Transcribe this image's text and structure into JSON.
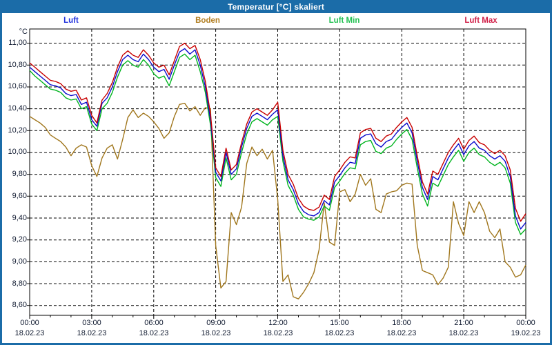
{
  "window": {
    "title": "Temperatur [°C] skaliert"
  },
  "chart_data": {
    "type": "line",
    "title": "Temperatur [°C] skaliert",
    "y_unit": "°C",
    "grid": "dashed-black",
    "legend_position": "top-row",
    "background": "#ffffff",
    "frame_color": "#1b6ca8",
    "plot_border_color": "#000000",
    "axis_text_color": "#101a30",
    "x_step_minutes": 15,
    "x_total_minutes": 1440,
    "x_axis": {
      "tick_hours": [
        0,
        3,
        6,
        9,
        12,
        15,
        18,
        21,
        24
      ],
      "tick_times": [
        "00:00",
        "03:00",
        "06:00",
        "09:00",
        "12:00",
        "15:00",
        "18:00",
        "21:00",
        "00:00"
      ],
      "tick_dates": [
        "18.02.23",
        "18.02.23",
        "18.02.23",
        "18.02.23",
        "18.02.23",
        "18.02.23",
        "18.02.23",
        "18.02.23",
        "19.02.23"
      ],
      "minor_tick_every_hours": 1
    },
    "y_axis": {
      "tick_values": [
        11.0,
        10.8,
        10.6,
        10.4,
        10.2,
        10.0,
        9.8,
        9.6,
        9.4,
        9.2,
        9.0,
        8.8,
        8.6
      ],
      "tick_labels": [
        "11,00",
        "10,80",
        "10,60",
        "10,40",
        "10,20",
        "10,00",
        "9,80",
        "9,60",
        "9,40",
        "9,20",
        "9,00",
        "8,80",
        "8,60"
      ],
      "shown_range": [
        8.51,
        11.13
      ]
    },
    "series": [
      {
        "name": "Luft",
        "line_color": "#0a0acc",
        "label_color": "#2233dd",
        "values": [
          10.78,
          10.74,
          10.7,
          10.66,
          10.62,
          10.61,
          10.59,
          10.54,
          10.52,
          10.53,
          10.44,
          10.46,
          10.3,
          10.24,
          10.45,
          10.5,
          10.6,
          10.74,
          10.85,
          10.89,
          10.85,
          10.83,
          10.9,
          10.85,
          10.78,
          10.74,
          10.76,
          10.67,
          10.8,
          10.92,
          10.95,
          10.9,
          10.94,
          10.8,
          10.6,
          10.3,
          9.82,
          9.74,
          10.0,
          9.8,
          9.85,
          10.05,
          10.22,
          10.33,
          10.36,
          10.33,
          10.3,
          10.35,
          10.39,
          9.97,
          9.75,
          9.66,
          9.53,
          9.46,
          9.43,
          9.42,
          9.45,
          9.56,
          9.52,
          9.73,
          9.79,
          9.86,
          9.91,
          9.9,
          10.13,
          10.16,
          10.17,
          10.08,
          10.05,
          10.1,
          10.12,
          10.18,
          10.23,
          10.27,
          10.18,
          9.92,
          9.68,
          9.57,
          9.78,
          9.75,
          9.85,
          9.95,
          10.02,
          10.08,
          9.98,
          10.06,
          10.1,
          10.04,
          10.02,
          9.97,
          9.94,
          9.97,
          9.92,
          9.78,
          9.42,
          9.3,
          9.36
        ]
      },
      {
        "name": "Boden",
        "line_color": "#a0761c",
        "label_color": "#b07d20",
        "values": [
          10.33,
          10.3,
          10.27,
          10.23,
          10.16,
          10.13,
          10.1,
          10.05,
          9.97,
          10.04,
          10.07,
          10.05,
          9.88,
          9.78,
          9.95,
          10.04,
          10.07,
          9.94,
          10.12,
          10.32,
          10.39,
          10.32,
          10.36,
          10.33,
          10.28,
          10.22,
          10.13,
          10.18,
          10.33,
          10.44,
          10.45,
          10.38,
          10.42,
          10.34,
          10.41,
          10.4,
          9.15,
          8.76,
          8.82,
          9.45,
          9.34,
          9.5,
          9.9,
          10.05,
          9.97,
          10.03,
          9.94,
          10.02,
          9.57,
          8.82,
          8.88,
          8.68,
          8.66,
          8.72,
          8.8,
          8.9,
          9.11,
          9.54,
          9.18,
          9.15,
          9.64,
          9.66,
          9.55,
          9.62,
          9.8,
          9.7,
          9.76,
          9.48,
          9.45,
          9.62,
          9.64,
          9.65,
          9.7,
          9.72,
          9.71,
          9.15,
          8.92,
          8.9,
          8.88,
          8.79,
          8.85,
          8.95,
          9.55,
          9.35,
          9.24,
          9.55,
          9.45,
          9.55,
          9.45,
          9.28,
          9.22,
          9.3,
          9.0,
          8.95,
          8.86,
          8.88,
          8.97
        ]
      },
      {
        "name": "Luft Min",
        "line_color": "#00b41e",
        "label_color": "#20c050",
        "values": [
          10.75,
          10.7,
          10.66,
          10.62,
          10.58,
          10.57,
          10.55,
          10.5,
          10.48,
          10.49,
          10.4,
          10.42,
          10.26,
          10.2,
          10.4,
          10.45,
          10.55,
          10.69,
          10.8,
          10.84,
          10.8,
          10.78,
          10.85,
          10.8,
          10.72,
          10.68,
          10.7,
          10.61,
          10.74,
          10.87,
          10.9,
          10.85,
          10.89,
          10.74,
          10.55,
          10.25,
          9.77,
          9.69,
          9.95,
          9.75,
          9.8,
          10.0,
          10.17,
          10.28,
          10.31,
          10.28,
          10.25,
          10.3,
          10.33,
          9.92,
          9.7,
          9.61,
          9.48,
          9.41,
          9.39,
          9.38,
          9.41,
          9.51,
          9.47,
          9.68,
          9.74,
          9.81,
          9.86,
          9.85,
          10.07,
          10.1,
          10.11,
          10.01,
          9.99,
          10.04,
          10.06,
          10.12,
          10.17,
          10.21,
          10.12,
          9.86,
          9.62,
          9.51,
          9.72,
          9.69,
          9.79,
          9.89,
          9.96,
          10.02,
          9.92,
          10.0,
          10.04,
          9.98,
          9.96,
          9.91,
          9.88,
          9.91,
          9.86,
          9.72,
          9.36,
          9.25,
          9.3
        ]
      },
      {
        "name": "Luft Max",
        "line_color": "#c80000",
        "label_color": "#d02048",
        "values": [
          10.82,
          10.78,
          10.74,
          10.7,
          10.66,
          10.65,
          10.63,
          10.58,
          10.56,
          10.57,
          10.48,
          10.5,
          10.34,
          10.27,
          10.48,
          10.54,
          10.64,
          10.78,
          10.89,
          10.93,
          10.89,
          10.87,
          10.94,
          10.89,
          10.82,
          10.78,
          10.8,
          10.71,
          10.84,
          10.97,
          11.0,
          10.95,
          10.98,
          10.85,
          10.65,
          10.35,
          9.86,
          9.78,
          10.04,
          9.84,
          9.89,
          10.09,
          10.26,
          10.37,
          10.4,
          10.37,
          10.34,
          10.39,
          10.46,
          10.02,
          9.8,
          9.71,
          9.58,
          9.51,
          9.48,
          9.47,
          9.5,
          9.61,
          9.57,
          9.78,
          9.84,
          9.91,
          9.96,
          9.95,
          10.18,
          10.21,
          10.22,
          10.13,
          10.1,
          10.15,
          10.17,
          10.23,
          10.28,
          10.32,
          10.23,
          9.97,
          9.73,
          9.62,
          9.83,
          9.8,
          9.9,
          10.0,
          10.07,
          10.13,
          10.03,
          10.11,
          10.15,
          10.09,
          10.07,
          10.02,
          9.99,
          10.02,
          9.97,
          9.84,
          9.49,
          9.37,
          9.44
        ]
      }
    ]
  }
}
